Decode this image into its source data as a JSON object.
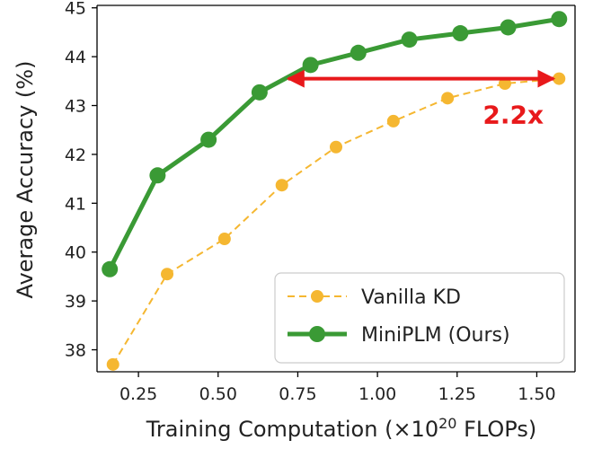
{
  "chart_data": {
    "type": "line",
    "xlabel_prefix": "Training Computation (×10",
    "xlabel_sup": "20",
    "xlabel_suffix": " FLOPs)",
    "ylabel": "Average Accuracy (%)",
    "xlim": [
      0.12,
      1.62
    ],
    "ylim": [
      37.55,
      45.05
    ],
    "xticks": [
      0.25,
      0.5,
      0.75,
      1.0,
      1.25,
      1.5
    ],
    "xtick_labels": [
      "0.25",
      "0.50",
      "0.75",
      "1.00",
      "1.25",
      "1.50"
    ],
    "yticks": [
      38,
      39,
      40,
      41,
      42,
      43,
      44,
      45
    ],
    "ytick_labels": [
      "38",
      "39",
      "40",
      "41",
      "42",
      "43",
      "44",
      "45"
    ],
    "grid": false,
    "legend_position": "bottom-right",
    "series": [
      {
        "name": "Vanilla KD",
        "color": "#f5b731",
        "style": "dashed",
        "x": [
          0.17,
          0.34,
          0.52,
          0.7,
          0.87,
          1.05,
          1.22,
          1.4,
          1.57
        ],
        "y": [
          37.7,
          39.55,
          40.27,
          41.37,
          42.15,
          42.68,
          43.15,
          43.45,
          43.55
        ]
      },
      {
        "name": "MiniPLM (Ours)",
        "color": "#3a9a35",
        "style": "solid",
        "x": [
          0.16,
          0.31,
          0.47,
          0.63,
          0.79,
          0.94,
          1.1,
          1.26,
          1.41,
          1.57
        ],
        "y": [
          39.65,
          41.57,
          42.3,
          43.27,
          43.83,
          44.08,
          44.35,
          44.48,
          44.6,
          44.77
        ]
      }
    ],
    "annotation": {
      "text": "2.2x",
      "color": "#e8191b",
      "arrow_y": 43.55,
      "arrow_x_start": 0.72,
      "arrow_x_end": 1.57
    }
  }
}
